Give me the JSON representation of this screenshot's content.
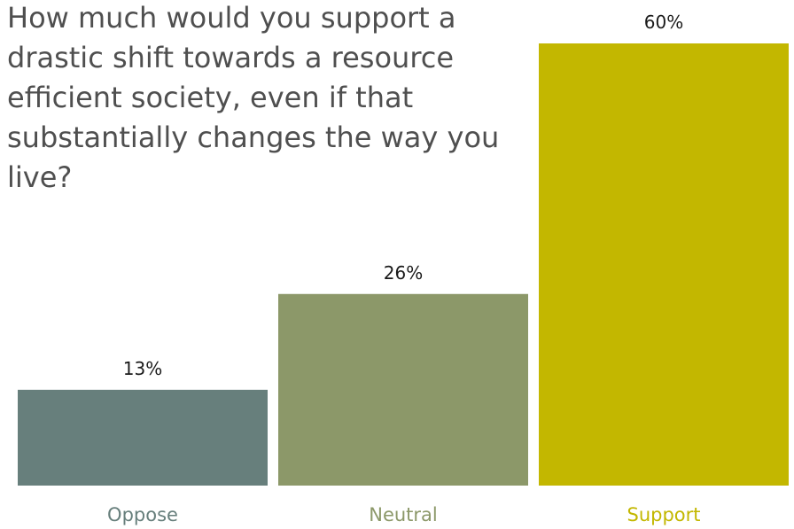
{
  "chart_data": {
    "type": "bar",
    "title": "How much would you support a drastic shift towards a resource efficient society, even if that substantially changes the way you live?",
    "categories": [
      "Oppose",
      "Neutral",
      "Support"
    ],
    "values": [
      13,
      26,
      60
    ],
    "value_labels": [
      "13%",
      "26%",
      "60%"
    ],
    "unit": "%",
    "ylim": [
      0,
      60
    ],
    "grid": false,
    "legend": "none",
    "colors": {
      "bars": [
        "#677f7c",
        "#8c9869",
        "#c3b700"
      ],
      "category_labels": [
        "#677f7c",
        "#8c9869",
        "#c3b700"
      ],
      "value_labels": "#1a1a1a",
      "title": "#4f4f4f"
    }
  }
}
